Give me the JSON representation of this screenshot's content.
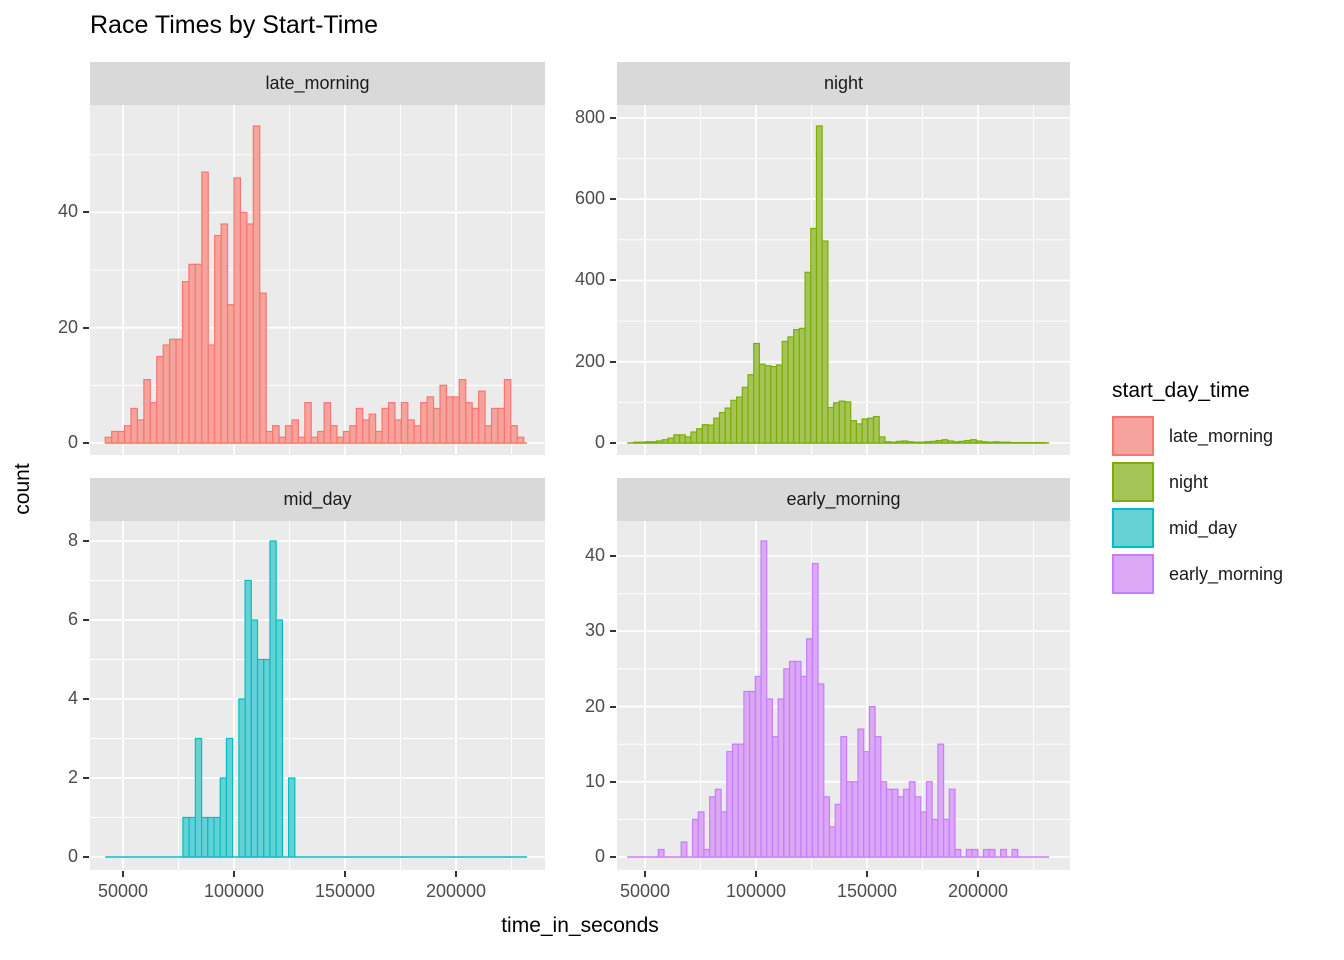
{
  "title": "Race Times by Start-Time",
  "axes": {
    "x_title": "time_in_seconds",
    "y_title": "count"
  },
  "legend": {
    "title": "start_day_time",
    "entries": [
      {
        "label": "late_morning",
        "fill": "#F6A39D",
        "stroke": "#F8766D"
      },
      {
        "label": "night",
        "fill": "#A5C457",
        "stroke": "#7CAE00"
      },
      {
        "label": "mid_day",
        "fill": "#66D1D4",
        "stroke": "#00BFC4"
      },
      {
        "label": "early_morning",
        "fill": "#DBA8F5",
        "stroke": "#C77CFF"
      }
    ]
  },
  "chart_data": {
    "type": "bar",
    "subtype": "faceted_histogram",
    "title": "Race Times by Start-Time",
    "xlabel": "time_in_seconds",
    "ylabel": "count",
    "facet_variable": "start_day_time",
    "panel_bg": "#EBEBEB",
    "strip_bg": "#D9D9D9",
    "grid_color": "#FFFFFF",
    "x_ticks": [
      50000,
      100000,
      150000,
      200000
    ],
    "x_tick_labels": [
      "50000",
      "100000",
      "150000",
      "200000"
    ],
    "x_minor_ticks": [
      75000,
      125000,
      175000,
      225000
    ],
    "x_range": [
      42000,
      232000
    ],
    "facets": [
      {
        "name": "late_morning",
        "stroke": "#F8766D",
        "fill": "#F6A39D",
        "y_ticks": [
          0,
          20,
          40
        ],
        "y_tick_labels": [
          "0",
          "20",
          "40"
        ],
        "ymax": 55,
        "x_start": 42000,
        "bin_width": 2900,
        "counts": [
          1,
          2,
          2,
          3,
          6,
          4,
          11,
          7,
          15,
          17,
          18,
          18,
          28,
          31,
          31,
          47,
          17,
          36,
          38,
          24,
          46,
          40,
          38,
          55,
          26,
          2,
          3,
          1,
          3,
          4,
          1,
          7,
          1,
          2,
          7,
          3,
          1,
          2,
          3,
          6,
          4,
          5,
          2,
          6,
          7,
          4,
          7,
          4,
          3,
          7,
          8,
          6,
          10,
          8,
          8,
          11,
          7,
          6,
          9,
          3,
          6,
          6,
          11,
          3,
          1
        ]
      },
      {
        "name": "night",
        "stroke": "#7CAE00",
        "fill": "#A5C457",
        "y_ticks": [
          0,
          200,
          400,
          600,
          800
        ],
        "y_tick_labels": [
          "0",
          "200",
          "400",
          "600",
          "800"
        ],
        "ymax": 780,
        "x_start": 45000,
        "bin_width": 2570,
        "counts": [
          2,
          2,
          3,
          3,
          5,
          8,
          12,
          20,
          20,
          15,
          27,
          35,
          45,
          44,
          61,
          75,
          86,
          105,
          113,
          137,
          168,
          245,
          194,
          190,
          188,
          192,
          250,
          261,
          279,
          282,
          420,
          528,
          780,
          497,
          87,
          99,
          103,
          101,
          55,
          47,
          59,
          61,
          65,
          15,
          3,
          2,
          4,
          5,
          3,
          2,
          2,
          3,
          4,
          6,
          8,
          5,
          3,
          4,
          6,
          8,
          5,
          3,
          2,
          3,
          2,
          2,
          1,
          1,
          1,
          1,
          1,
          1
        ]
      },
      {
        "name": "mid_day",
        "stroke": "#00BFC4",
        "fill": "#66D1D4",
        "y_ticks": [
          0,
          2,
          4,
          6,
          8
        ],
        "y_tick_labels": [
          "0",
          "2",
          "4",
          "6",
          "8"
        ],
        "ymax": 8,
        "x_start": 77000,
        "bin_width": 2800,
        "counts": [
          1,
          1,
          3,
          1,
          1,
          1,
          2,
          3,
          0,
          4,
          7,
          6,
          5,
          5,
          8,
          6,
          0,
          2
        ]
      },
      {
        "name": "early_morning",
        "stroke": "#C77CFF",
        "fill": "#DBA8F5",
        "y_ticks": [
          0,
          10,
          20,
          30,
          40
        ],
        "y_tick_labels": [
          "0",
          "10",
          "20",
          "30",
          "40"
        ],
        "ymax": 42,
        "x_start": 56000,
        "bin_width": 2570,
        "counts": [
          1,
          0,
          0,
          0,
          2,
          0,
          5,
          6,
          1,
          8,
          9,
          6,
          14,
          15,
          15,
          22,
          22,
          24,
          42,
          21,
          16,
          21,
          25,
          26,
          26,
          24,
          29,
          39,
          23,
          8,
          4,
          7,
          16,
          10,
          10,
          17,
          14,
          20,
          16,
          10,
          9,
          9,
          8,
          9,
          10,
          8,
          6,
          10,
          5,
          15,
          5,
          9,
          1,
          0,
          1,
          1,
          0,
          1,
          1,
          0,
          1,
          0,
          1
        ]
      }
    ]
  }
}
